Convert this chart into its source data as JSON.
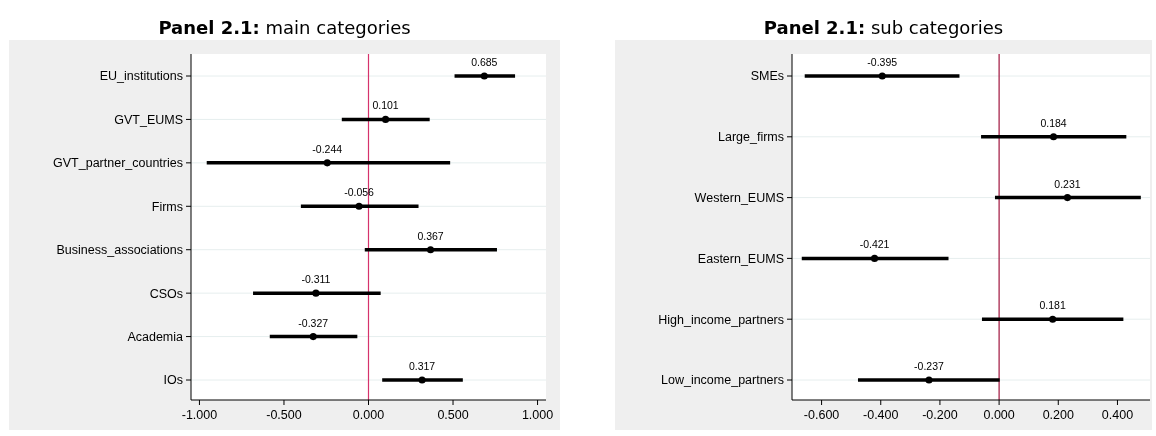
{
  "chart_data": [
    {
      "type": "scatter",
      "title": "Panel 2.1: main categories",
      "orientation": "horizontal",
      "categories": [
        "EU_institutions",
        "GVT_EUMS",
        "GVT_partner_countries",
        "Firms",
        "Business_associations",
        "CSOs",
        "Academia",
        "IOs"
      ],
      "series": [
        {
          "color": "#000000",
          "values": [
            0.685,
            0.101,
            -0.244,
            -0.056,
            0.367,
            -0.311,
            -0.327,
            0.317
          ],
          "errors": [
            [
              0.509,
              0.867
            ],
            [
              -0.158,
              0.362
            ],
            [
              -0.957,
              0.483
            ],
            [
              -0.4,
              0.296
            ],
            [
              -0.022,
              0.76
            ],
            [
              -0.683,
              0.072
            ],
            [
              -0.584,
              -0.066
            ],
            [
              0.081,
              0.558
            ]
          ]
        }
      ],
      "xlim": [
        -1.05,
        1.05
      ],
      "xticks": [
        {
          "value": -1,
          "label": "-1.000"
        },
        {
          "value": -0.5,
          "label": "-0.500"
        },
        {
          "value": 0,
          "label": "0.000"
        },
        {
          "value": 0.5,
          "label": "0.500"
        },
        {
          "value": 1,
          "label": "1.000"
        }
      ],
      "ref_lines": [
        {
          "axis": "x",
          "value": 0,
          "color": "#d6336c"
        }
      ],
      "grid": "y",
      "marker": "circle",
      "data_labels": true
    },
    {
      "type": "scatter",
      "title": "Panel 2.1: sub categories",
      "orientation": "horizontal",
      "categories": [
        "SMEs",
        "Large_firms",
        "Western_EUMS",
        "Eastern_EUMS",
        "High_income_partners",
        "Low_income_partners"
      ],
      "series": [
        {
          "color": "#000000",
          "values": [
            -0.395,
            0.184,
            0.231,
            -0.421,
            0.181,
            -0.237
          ],
          "errors": [
            [
              -0.657,
              -0.134
            ],
            [
              -0.061,
              0.43
            ],
            [
              -0.014,
              0.479
            ],
            [
              -0.667,
              -0.171
            ],
            [
              -0.058,
              0.42
            ],
            [
              -0.477,
              0.002
            ]
          ]
        }
      ],
      "xlim": [
        -0.7,
        0.51
      ],
      "xticks": [
        {
          "value": -0.6,
          "label": "-0.600"
        },
        {
          "value": -0.4,
          "label": "-0.400"
        },
        {
          "value": -0.2,
          "label": "-0.200"
        },
        {
          "value": 0,
          "label": "0.000"
        },
        {
          "value": 0.2,
          "label": "0.200"
        },
        {
          "value": 0.4,
          "label": "0.400"
        }
      ],
      "ref_lines": [
        {
          "axis": "x",
          "value": 0,
          "color": "#a0153e"
        }
      ],
      "grid": "y",
      "marker": "circle",
      "data_labels": true
    }
  ]
}
